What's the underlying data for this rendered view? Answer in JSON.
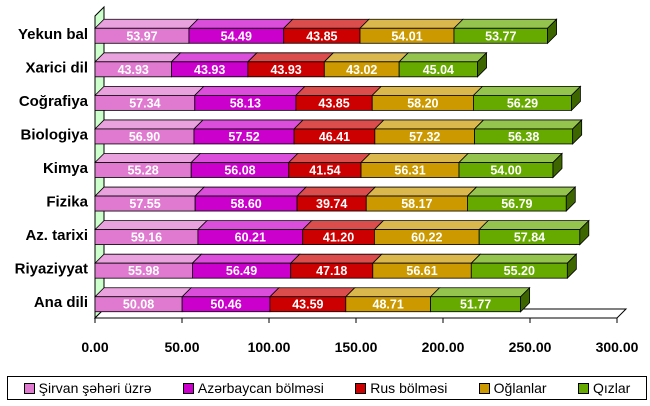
{
  "chart_data": {
    "type": "bar",
    "orientation": "horizontal",
    "stacked": true,
    "three_d": true,
    "categories": [
      "Ana dili",
      "Riyaziyyat",
      "Az. tarixi",
      "Fizika",
      "Kimya",
      "Biologiya",
      "Coğrafiya",
      "Xarici dil",
      "Yekun bal"
    ],
    "series": [
      {
        "name": "Şirvan şəhəri üzrə",
        "color": "#e07ad0",
        "values": [
          50.08,
          55.98,
          59.16,
          57.55,
          55.28,
          56.9,
          57.34,
          43.93,
          53.97
        ]
      },
      {
        "name": "Azərbaycan bölməsi",
        "color": "#cc00cc",
        "values": [
          50.46,
          56.49,
          60.21,
          58.6,
          56.08,
          57.52,
          58.13,
          43.93,
          54.49
        ]
      },
      {
        "name": "Rus bölməsi",
        "color": "#cc0000",
        "values": [
          43.59,
          47.18,
          41.2,
          39.74,
          41.54,
          46.41,
          43.85,
          43.93,
          43.85
        ]
      },
      {
        "name": "Oğlanlar",
        "color": "#cc9900",
        "values": [
          48.71,
          56.61,
          60.22,
          58.17,
          56.31,
          57.32,
          58.2,
          43.02,
          54.01
        ]
      },
      {
        "name": "Qızlar",
        "color": "#66aa00",
        "values": [
          51.77,
          55.2,
          57.84,
          56.79,
          54.0,
          56.38,
          56.29,
          45.04,
          53.77
        ]
      }
    ],
    "value_labels": [
      [
        "50.08",
        "55.98",
        "59.16",
        "57.55",
        "55.28",
        "56.90",
        "57.34",
        "43.93",
        "53.97"
      ],
      [
        "50.46",
        "56.49",
        "60.21",
        "58.60",
        "56.08",
        "57.52",
        "58.13",
        "43.93",
        "54.49"
      ],
      [
        "43.59",
        "47.18",
        "41.20",
        "39.74",
        "41.54",
        "46.41",
        "43.85",
        "43.93",
        "43.85"
      ],
      [
        "48.71",
        "56.61",
        "60.22",
        "58.17",
        "56.31",
        "57.32",
        "58.20",
        "43.02",
        "54.01"
      ],
      [
        "51.77",
        "55.20",
        "57.84",
        "56.79",
        "54.00",
        "56.38",
        "56.29",
        "45.04",
        "53.77"
      ]
    ],
    "x_ticks": [
      "0.00",
      "50.00",
      "100.00",
      "150.00",
      "200.00",
      "250.00",
      "300.00"
    ],
    "xlim": [
      0,
      300
    ],
    "grid": false,
    "legend_position": "bottom",
    "wall_color": "#ccffcc",
    "title": "",
    "xlabel": "",
    "ylabel": ""
  }
}
